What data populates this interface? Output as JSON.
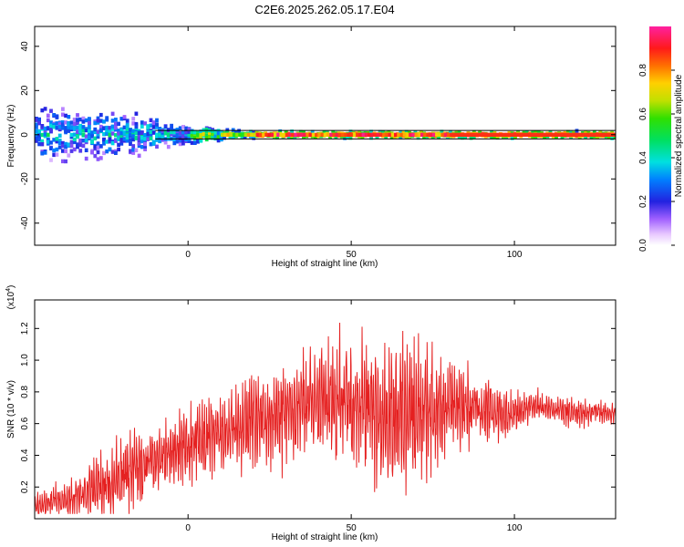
{
  "title": "C2E6.2025.262.05.17.E04",
  "chart_data": [
    {
      "type": "heatmap",
      "xlabel": "Height of straight line (km)",
      "ylabel": "Frequency (Hz)",
      "xlim": [
        -47,
        131
      ],
      "ylim": [
        -50,
        49
      ],
      "xticks": [
        0,
        50,
        100
      ],
      "yticks": [
        -40,
        -20,
        0,
        20,
        40
      ],
      "colorbar": {
        "label": "Normalized spectral amplitude",
        "range": [
          0,
          1
        ],
        "ticks": [
          0.0,
          0.2,
          0.4,
          0.6,
          0.8
        ]
      },
      "description_of_values": "Energy concentrated near 0 Hz; broad scatter (about -15 to +12 Hz) below 0 km, narrowing to a line at 0 Hz above about 10 km with peak amplitude near 1.0 at heights greater than 20 km."
    },
    {
      "type": "line",
      "xlabel": "Height of straight line (km)",
      "ylabel": "SNR (10 * v/v)",
      "yscale_label": "(x10",
      "yscale_exp": "4",
      "yscale_close": ")",
      "xlim": [
        -47,
        131
      ],
      "ylim": [
        0.0,
        1.38
      ],
      "xticks": [
        0,
        50,
        100
      ],
      "yticks": [
        0.2,
        0.4,
        0.6,
        0.8,
        1.0,
        1.2
      ],
      "color": "#e52020",
      "series": [
        {
          "x": [
            -47,
            -40,
            -35,
            -30,
            -25,
            -20,
            -15,
            -10,
            -5,
            0,
            5,
            10,
            15,
            20,
            25,
            30,
            35,
            40,
            45,
            50,
            55,
            60,
            65,
            70,
            75,
            80,
            85,
            90,
            95,
            100,
            105,
            110,
            115,
            120,
            125,
            131
          ],
          "y": [
            0.08,
            0.12,
            0.12,
            0.18,
            0.22,
            0.28,
            0.33,
            0.38,
            0.42,
            0.46,
            0.5,
            0.52,
            0.56,
            0.62,
            0.62,
            0.66,
            0.74,
            0.75,
            0.76,
            0.74,
            0.7,
            0.64,
            0.64,
            0.66,
            0.68,
            0.72,
            0.72,
            0.68,
            0.66,
            0.66,
            0.72,
            0.7,
            0.68,
            0.66,
            0.68,
            0.66
          ],
          "amplitude": [
            0.08,
            0.1,
            0.15,
            0.18,
            0.22,
            0.25,
            0.25,
            0.22,
            0.22,
            0.22,
            0.26,
            0.24,
            0.26,
            0.34,
            0.32,
            0.32,
            0.32,
            0.34,
            0.4,
            0.42,
            0.44,
            0.48,
            0.46,
            0.46,
            0.44,
            0.34,
            0.28,
            0.22,
            0.18,
            0.14,
            0.1,
            0.1,
            0.09,
            0.08,
            0.07,
            0.07
          ]
        }
      ]
    }
  ]
}
